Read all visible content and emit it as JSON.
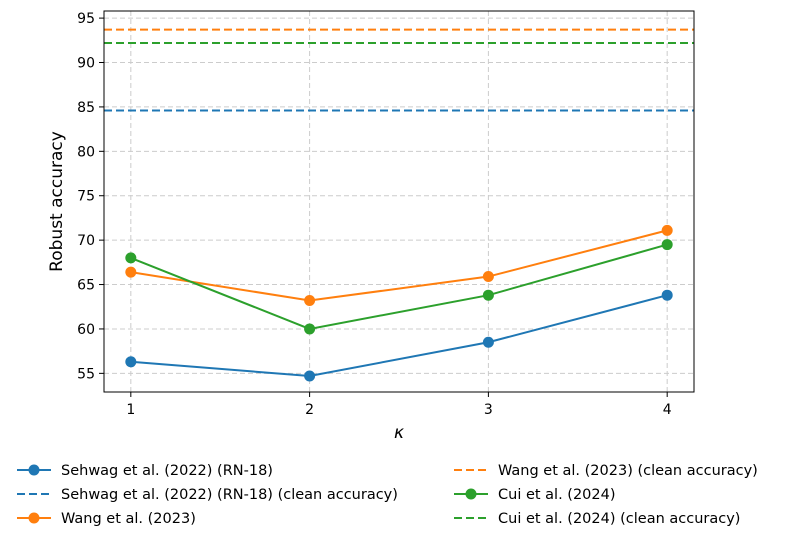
{
  "chart_data": {
    "type": "line",
    "title": "",
    "xlabel": "κ",
    "ylabel": "Robust accuracy",
    "x": [
      1,
      2,
      3,
      4
    ],
    "xticks": [
      "1",
      "2",
      "3",
      "4"
    ],
    "yticks": [
      "55",
      "60",
      "65",
      "70",
      "75",
      "80",
      "85",
      "90",
      "95"
    ],
    "ytick_values": [
      55,
      60,
      65,
      70,
      75,
      80,
      85,
      90,
      95
    ],
    "xlim": [
      0.85,
      4.15
    ],
    "ylim": [
      52.9,
      95.8
    ],
    "grid": true,
    "legend_position": "below",
    "series": [
      {
        "name": "Sehwag et al. (2022) (RN-18)",
        "style": "line-marker",
        "color": "#1f77b4",
        "values": [
          56.3,
          54.7,
          58.5,
          63.8
        ]
      },
      {
        "name": "Sehwag et al. (2022) (RN-18) (clean accuracy)",
        "style": "dashed",
        "color": "#1f77b4",
        "value": 84.6
      },
      {
        "name": "Wang et al. (2023)",
        "style": "line-marker",
        "color": "#ff7f0e",
        "values": [
          66.4,
          63.2,
          65.9,
          71.1
        ]
      },
      {
        "name": "Wang et al. (2023) (clean accuracy)",
        "style": "dashed",
        "color": "#ff7f0e",
        "value": 93.7
      },
      {
        "name": "Cui et al. (2024)",
        "style": "line-marker",
        "color": "#2ca02c",
        "values": [
          68.0,
          60.0,
          63.8,
          69.5
        ]
      },
      {
        "name": "Cui et al. (2024) (clean accuracy)",
        "style": "dashed",
        "color": "#2ca02c",
        "value": 92.2
      }
    ]
  }
}
